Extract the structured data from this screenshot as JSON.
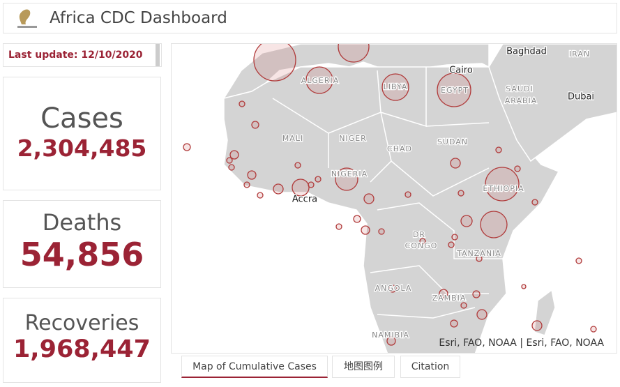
{
  "header": {
    "title": "Africa CDC Dashboard"
  },
  "last_update": "Last update: 12/10/2020",
  "cards": [
    {
      "label": "Cases",
      "value": "2,304,485"
    },
    {
      "label": "Deaths",
      "value": "54,856"
    },
    {
      "label": "Recoveries",
      "value": "1,968,447"
    }
  ],
  "map": {
    "labels": [
      "Baghdad",
      "IRAN",
      "Cairo",
      "SAUDI",
      "ARABIA",
      "Dubai",
      "ALGERIA",
      "LIBYA",
      "EGYPT",
      "MALI",
      "NIGER",
      "CHAD",
      "SUDAN",
      "NIGERIA",
      "ETHIOPIA",
      "Accra",
      "DR",
      "CONGO",
      "TANZANIA",
      "ANGOLA",
      "ZAMBIA",
      "NAMIBIA"
    ],
    "attribution": "Esri, FAO, NOAA | Esri, FAO, NOAA"
  },
  "tabs": [
    "Map of Cumulative Cases",
    "地图图例",
    "Citation"
  ]
}
